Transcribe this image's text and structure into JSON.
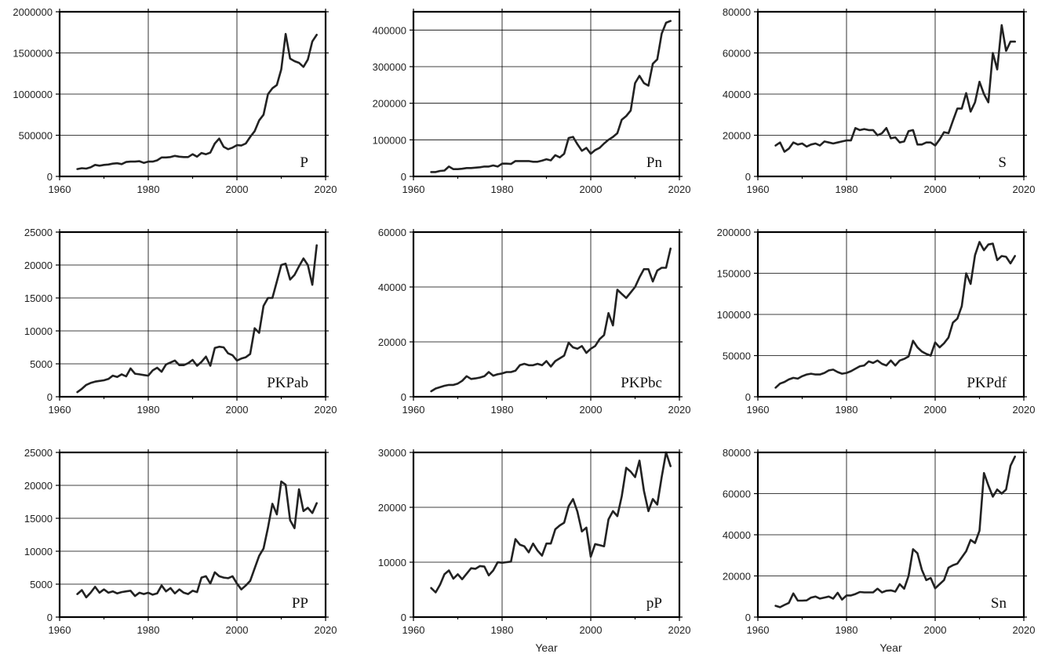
{
  "figure": {
    "colors": {
      "line": "#222222",
      "frame": "#000000",
      "grid": "#000000"
    }
  },
  "chart_data": [
    {
      "type": "line",
      "label": "P",
      "xlabel": "",
      "ylabel": "",
      "xlim": [
        1960,
        2020
      ],
      "ylim": [
        0,
        2000000
      ],
      "xticks": [
        1960,
        1980,
        2000,
        2020
      ],
      "yticks": [
        0,
        500000,
        1000000,
        1500000,
        2000000
      ],
      "grid": true,
      "label_position": "bottom-right",
      "x": [
        1964,
        1965,
        1966,
        1967,
        1968,
        1969,
        1970,
        1971,
        1972,
        1973,
        1974,
        1975,
        1976,
        1977,
        1978,
        1979,
        1980,
        1981,
        1982,
        1983,
        1984,
        1985,
        1986,
        1987,
        1988,
        1989,
        1990,
        1991,
        1992,
        1993,
        1994,
        1995,
        1996,
        1997,
        1998,
        1999,
        2000,
        2001,
        2002,
        2003,
        2004,
        2005,
        2006,
        2007,
        2008,
        2009,
        2010,
        2011,
        2012,
        2013,
        2014,
        2015,
        2016,
        2017,
        2018
      ],
      "y": [
        90000,
        100000,
        95000,
        110000,
        140000,
        130000,
        140000,
        145000,
        155000,
        160000,
        150000,
        175000,
        180000,
        180000,
        185000,
        165000,
        180000,
        180000,
        195000,
        230000,
        230000,
        235000,
        250000,
        240000,
        235000,
        235000,
        270000,
        240000,
        285000,
        270000,
        290000,
        400000,
        460000,
        360000,
        330000,
        350000,
        380000,
        375000,
        400000,
        480000,
        550000,
        680000,
        750000,
        1000000,
        1070000,
        1110000,
        1300000,
        1730000,
        1430000,
        1400000,
        1380000,
        1330000,
        1420000,
        1640000,
        1720000
      ]
    },
    {
      "type": "line",
      "label": "Pn",
      "xlabel": "",
      "ylabel": "",
      "xlim": [
        1960,
        2020
      ],
      "ylim": [
        0,
        450000
      ],
      "xticks": [
        1960,
        1980,
        2000,
        2020
      ],
      "yticks": [
        0,
        100000,
        200000,
        300000,
        400000
      ],
      "grid": true,
      "label_position": "bottom-right",
      "x": [
        1964,
        1965,
        1966,
        1967,
        1968,
        1969,
        1970,
        1971,
        1972,
        1973,
        1974,
        1975,
        1976,
        1977,
        1978,
        1979,
        1980,
        1981,
        1982,
        1983,
        1984,
        1985,
        1986,
        1987,
        1988,
        1989,
        1990,
        1991,
        1992,
        1993,
        1994,
        1995,
        1996,
        1997,
        1998,
        1999,
        2000,
        2001,
        2002,
        2003,
        2004,
        2005,
        2006,
        2007,
        2008,
        2009,
        2010,
        2011,
        2012,
        2013,
        2014,
        2015,
        2016,
        2017,
        2018
      ],
      "y": [
        12000,
        12000,
        15000,
        16000,
        27000,
        20000,
        20000,
        21000,
        23000,
        23000,
        24000,
        25000,
        27000,
        27000,
        30000,
        27000,
        35000,
        35000,
        34000,
        42000,
        42000,
        42000,
        42000,
        40000,
        40000,
        43000,
        47000,
        44000,
        58000,
        52000,
        62000,
        105000,
        108000,
        88000,
        70000,
        78000,
        62000,
        72000,
        78000,
        90000,
        100000,
        108000,
        118000,
        155000,
        165000,
        180000,
        255000,
        275000,
        255000,
        248000,
        308000,
        320000,
        390000,
        420000,
        425000
      ]
    },
    {
      "type": "line",
      "label": "S",
      "xlabel": "",
      "ylabel": "",
      "xlim": [
        1960,
        2020
      ],
      "ylim": [
        0,
        80000
      ],
      "xticks": [
        1960,
        1980,
        2000,
        2020
      ],
      "yticks": [
        0,
        20000,
        40000,
        60000,
        80000
      ],
      "grid": true,
      "label_position": "bottom-right",
      "x": [
        1964,
        1965,
        1966,
        1967,
        1968,
        1969,
        1970,
        1971,
        1972,
        1973,
        1974,
        1975,
        1976,
        1977,
        1978,
        1979,
        1980,
        1981,
        1982,
        1983,
        1984,
        1985,
        1986,
        1987,
        1988,
        1989,
        1990,
        1991,
        1992,
        1993,
        1994,
        1995,
        1996,
        1997,
        1998,
        1999,
        2000,
        2001,
        2002,
        2003,
        2004,
        2005,
        2006,
        2007,
        2008,
        2009,
        2010,
        2011,
        2012,
        2013,
        2014,
        2015,
        2016,
        2017,
        2018
      ],
      "y": [
        15000,
        16500,
        12000,
        13500,
        16500,
        15500,
        16000,
        14500,
        15500,
        16000,
        15000,
        17000,
        16500,
        16000,
        16500,
        17000,
        17500,
        17500,
        23500,
        22500,
        23000,
        22500,
        22500,
        20000,
        21000,
        23500,
        18500,
        19000,
        16500,
        17000,
        22000,
        22500,
        15500,
        15500,
        16500,
        16500,
        15000,
        18000,
        21500,
        21000,
        27000,
        33000,
        33000,
        40500,
        31500,
        36000,
        46000,
        40000,
        36000,
        60000,
        52000,
        73500,
        61000,
        65500,
        65500
      ]
    },
    {
      "type": "line",
      "label": "PKPab",
      "xlabel": "",
      "ylabel": "",
      "xlim": [
        1960,
        2020
      ],
      "ylim": [
        0,
        25000
      ],
      "xticks": [
        1960,
        1980,
        2000,
        2020
      ],
      "yticks": [
        0,
        5000,
        10000,
        15000,
        20000,
        25000
      ],
      "grid": true,
      "label_position": "bottom-right",
      "x": [
        1964,
        1965,
        1966,
        1967,
        1968,
        1969,
        1970,
        1971,
        1972,
        1973,
        1974,
        1975,
        1976,
        1977,
        1978,
        1979,
        1980,
        1981,
        1982,
        1983,
        1984,
        1985,
        1986,
        1987,
        1988,
        1989,
        1990,
        1991,
        1992,
        1993,
        1994,
        1995,
        1996,
        1997,
        1998,
        1999,
        2000,
        2001,
        2002,
        2003,
        2004,
        2005,
        2006,
        2007,
        2008,
        2009,
        2010,
        2011,
        2012,
        2013,
        2014,
        2015,
        2016,
        2017,
        2018
      ],
      "y": [
        700,
        1200,
        1800,
        2100,
        2300,
        2400,
        2500,
        2700,
        3200,
        3000,
        3400,
        3100,
        4300,
        3500,
        3400,
        3300,
        3200,
        4000,
        4400,
        3800,
        4900,
        5200,
        5500,
        4800,
        4800,
        5100,
        5600,
        4700,
        5300,
        6100,
        4700,
        7400,
        7600,
        7500,
        6600,
        6300,
        5500,
        5800,
        6000,
        6500,
        10400,
        9700,
        13800,
        15000,
        15000,
        17500,
        20000,
        20200,
        17800,
        18500,
        19800,
        21000,
        20000,
        17000,
        23000
      ]
    },
    {
      "type": "line",
      "label": "PKPbc",
      "xlabel": "",
      "ylabel": "",
      "xlim": [
        1960,
        2020
      ],
      "ylim": [
        0,
        60000
      ],
      "xticks": [
        1960,
        1980,
        2000,
        2020
      ],
      "yticks": [
        0,
        20000,
        40000,
        60000
      ],
      "grid": true,
      "label_position": "bottom-right",
      "x": [
        1964,
        1965,
        1966,
        1967,
        1968,
        1969,
        1970,
        1971,
        1972,
        1973,
        1974,
        1975,
        1976,
        1977,
        1978,
        1979,
        1980,
        1981,
        1982,
        1983,
        1984,
        1985,
        1986,
        1987,
        1988,
        1989,
        1990,
        1991,
        1992,
        1993,
        1994,
        1995,
        1996,
        1997,
        1998,
        1999,
        2000,
        2001,
        2002,
        2003,
        2004,
        2005,
        2006,
        2007,
        2008,
        2009,
        2010,
        2011,
        2012,
        2013,
        2014,
        2015,
        2016,
        2017,
        2018
      ],
      "y": [
        2000,
        3000,
        3500,
        4000,
        4300,
        4300,
        4800,
        5800,
        7500,
        6500,
        6700,
        7000,
        7500,
        9000,
        7700,
        8200,
        8500,
        9000,
        9000,
        9500,
        11500,
        12000,
        11500,
        11500,
        12000,
        11500,
        13000,
        11000,
        13000,
        14000,
        15000,
        19700,
        18000,
        17500,
        18500,
        16000,
        17500,
        18500,
        21000,
        22500,
        30500,
        26000,
        39000,
        37500,
        36000,
        38000,
        40000,
        43500,
        46500,
        46500,
        42000,
        46000,
        47000,
        47000,
        54000
      ]
    },
    {
      "type": "line",
      "label": "PKPdf",
      "xlabel": "",
      "ylabel": "",
      "xlim": [
        1960,
        2020
      ],
      "ylim": [
        0,
        200000
      ],
      "xticks": [
        1960,
        1980,
        2000,
        2020
      ],
      "yticks": [
        0,
        50000,
        100000,
        150000,
        200000
      ],
      "grid": true,
      "label_position": "bottom-right",
      "x": [
        1964,
        1965,
        1966,
        1967,
        1968,
        1969,
        1970,
        1971,
        1972,
        1973,
        1974,
        1975,
        1976,
        1977,
        1978,
        1979,
        1980,
        1981,
        1982,
        1983,
        1984,
        1985,
        1986,
        1987,
        1988,
        1989,
        1990,
        1991,
        1992,
        1993,
        1994,
        1995,
        1996,
        1997,
        1998,
        1999,
        2000,
        2001,
        2002,
        2003,
        2004,
        2005,
        2006,
        2007,
        2008,
        2009,
        2010,
        2011,
        2012,
        2013,
        2014,
        2015,
        2016,
        2017,
        2018
      ],
      "y": [
        11000,
        16000,
        18000,
        21000,
        23000,
        22000,
        25000,
        27000,
        28000,
        27000,
        27000,
        29000,
        32000,
        33000,
        30000,
        28000,
        29000,
        31000,
        34000,
        37000,
        38000,
        43000,
        41000,
        44000,
        40000,
        38000,
        44000,
        38000,
        44000,
        46000,
        49000,
        68000,
        60000,
        55000,
        52000,
        50000,
        66000,
        60000,
        65000,
        72000,
        90000,
        95000,
        110000,
        150000,
        137000,
        172000,
        188000,
        178000,
        185000,
        186000,
        166000,
        171000,
        170000,
        162000,
        171000
      ]
    },
    {
      "type": "line",
      "label": "PP",
      "xlabel": "",
      "ylabel": "",
      "xlim": [
        1960,
        2020
      ],
      "ylim": [
        0,
        25000
      ],
      "xticks": [
        1960,
        1980,
        2000,
        2020
      ],
      "yticks": [
        0,
        5000,
        10000,
        15000,
        20000,
        25000
      ],
      "grid": true,
      "label_position": "bottom-right",
      "x": [
        1964,
        1965,
        1966,
        1967,
        1968,
        1969,
        1970,
        1971,
        1972,
        1973,
        1974,
        1975,
        1976,
        1977,
        1978,
        1979,
        1980,
        1981,
        1982,
        1983,
        1984,
        1985,
        1986,
        1987,
        1988,
        1989,
        1990,
        1991,
        1992,
        1993,
        1994,
        1995,
        1996,
        1997,
        1998,
        1999,
        2000,
        2001,
        2002,
        2003,
        2004,
        2005,
        2006,
        2007,
        2008,
        2009,
        2010,
        2011,
        2012,
        2013,
        2014,
        2015,
        2016,
        2017,
        2018
      ],
      "y": [
        3500,
        4100,
        3000,
        3700,
        4600,
        3700,
        4200,
        3700,
        3900,
        3600,
        3800,
        3900,
        4000,
        3200,
        3700,
        3500,
        3700,
        3400,
        3600,
        4800,
        3900,
        4400,
        3600,
        4200,
        3700,
        3500,
        4000,
        3800,
        6000,
        6200,
        5100,
        6800,
        6200,
        6000,
        5900,
        6200,
        5100,
        4200,
        4800,
        5500,
        7400,
        9300,
        10400,
        13600,
        17200,
        15600,
        20600,
        20100,
        14700,
        13500,
        19400,
        16100,
        16600,
        15800,
        17300
      ]
    },
    {
      "type": "line",
      "label": "pP",
      "xlabel": "Year",
      "ylabel": "",
      "xlim": [
        1960,
        2020
      ],
      "ylim": [
        0,
        30000
      ],
      "xticks": [
        1960,
        1980,
        2000,
        2020
      ],
      "yticks": [
        0,
        10000,
        20000,
        30000
      ],
      "grid": true,
      "label_position": "bottom-right",
      "x": [
        1964,
        1965,
        1966,
        1967,
        1968,
        1969,
        1970,
        1971,
        1972,
        1973,
        1974,
        1975,
        1976,
        1977,
        1978,
        1979,
        1980,
        1981,
        1982,
        1983,
        1984,
        1985,
        1986,
        1987,
        1988,
        1989,
        1990,
        1991,
        1992,
        1993,
        1994,
        1995,
        1996,
        1997,
        1998,
        1999,
        2000,
        2001,
        2002,
        2003,
        2004,
        2005,
        2006,
        2007,
        2008,
        2009,
        2010,
        2011,
        2012,
        2013,
        2014,
        2015,
        2016,
        2017,
        2018
      ],
      "y": [
        5300,
        4500,
        5900,
        7800,
        8500,
        7000,
        7800,
        6900,
        7900,
        8900,
        8800,
        9300,
        9200,
        7600,
        8500,
        10000,
        9900,
        10000,
        10100,
        14200,
        13200,
        12900,
        11800,
        13400,
        12100,
        11200,
        13400,
        13400,
        16000,
        16700,
        17200,
        20200,
        21500,
        19200,
        15600,
        16300,
        11000,
        13300,
        13100,
        12900,
        17800,
        19300,
        18400,
        22000,
        27200,
        26500,
        25500,
        28500,
        23000,
        19300,
        21500,
        20500,
        25500,
        30000,
        27500
      ]
    },
    {
      "type": "line",
      "label": "Sn",
      "xlabel": "Year",
      "ylabel": "",
      "xlim": [
        1960,
        2020
      ],
      "ylim": [
        0,
        80000
      ],
      "xticks": [
        1960,
        1980,
        2000,
        2020
      ],
      "yticks": [
        0,
        20000,
        40000,
        60000,
        80000
      ],
      "grid": true,
      "label_position": "bottom-right",
      "x": [
        1964,
        1965,
        1966,
        1967,
        1968,
        1969,
        1970,
        1971,
        1972,
        1973,
        1974,
        1975,
        1976,
        1977,
        1978,
        1979,
        1980,
        1981,
        1982,
        1983,
        1984,
        1985,
        1986,
        1987,
        1988,
        1989,
        1990,
        1991,
        1992,
        1993,
        1994,
        1995,
        1996,
        1997,
        1998,
        1999,
        2000,
        2001,
        2002,
        2003,
        2004,
        2005,
        2006,
        2007,
        2008,
        2009,
        2010,
        2011,
        2012,
        2013,
        2014,
        2015,
        2016,
        2017,
        2018
      ],
      "y": [
        5500,
        4800,
        5900,
        6900,
        11500,
        8000,
        8000,
        8100,
        9500,
        10000,
        9000,
        9500,
        10000,
        9000,
        11800,
        8500,
        10500,
        10500,
        11200,
        12200,
        12000,
        12000,
        12000,
        13800,
        12000,
        12800,
        13000,
        12400,
        16000,
        13800,
        20000,
        33000,
        31000,
        23000,
        18000,
        19000,
        14000,
        16000,
        18000,
        24000,
        25200,
        26000,
        29000,
        32000,
        37500,
        36000,
        42000,
        70000,
        64000,
        58500,
        62000,
        60000,
        62000,
        73500,
        78000
      ]
    }
  ]
}
